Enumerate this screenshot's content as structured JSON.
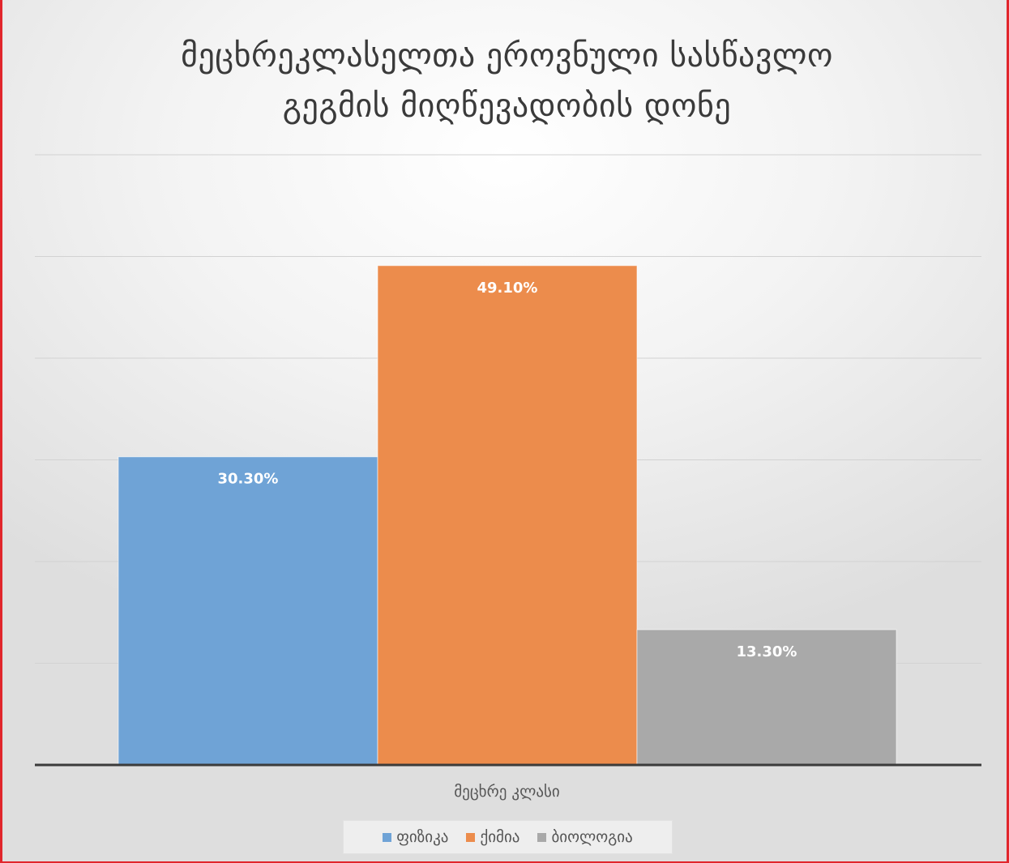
{
  "chart_data": {
    "type": "bar",
    "title": [
      "მეცხრეკლასელთა ეროვნული სასწავლო",
      "გეგმის მიღწევადობის დონე"
    ],
    "categories": [
      "მეცხრე კლასი"
    ],
    "series": [
      {
        "name": "ფიზიკა",
        "values": [
          30.3
        ],
        "label": "30.30%",
        "color": "#6fa3d6"
      },
      {
        "name": "ქიმია",
        "values": [
          49.1
        ],
        "label": "49.10%",
        "color": "#ec8c4c"
      },
      {
        "name": "ბიოლოგია",
        "values": [
          13.3
        ],
        "label": "13.30%",
        "color": "#a9a9a9"
      }
    ],
    "ylim": [
      0,
      60
    ],
    "y_gridlines": [
      10,
      20,
      30,
      40,
      50,
      60
    ],
    "grid": true,
    "legend": "bottom",
    "xlabel": "",
    "ylabel": ""
  }
}
